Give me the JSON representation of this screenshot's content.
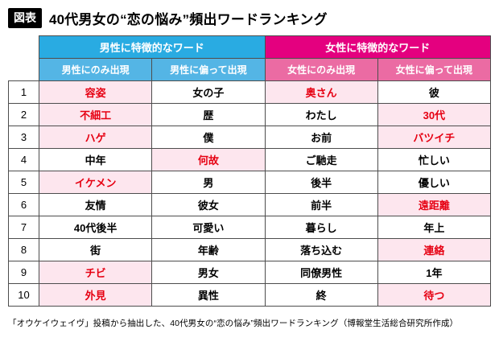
{
  "page": {
    "badge": "図表",
    "title": "40代男女の“恋の悩み”頻出ワードランキング",
    "caption": "「オウケイウェイヴ」投稿から抽出した、40代男女の“恋の悩み”頻出ワードランキング（博報堂生活総合研究所作成）"
  },
  "colors": {
    "male_header": "#29ABE2",
    "male_subheader": "#54B5E5",
    "female_header": "#E4007F",
    "female_subheader": "#EB6BA3",
    "highlight_bg": "#FDE6EE",
    "highlight_text": "#E60012",
    "badge_bg": "#000000",
    "grid_border": "#4D4D4D"
  },
  "chart_data": {
    "type": "table",
    "title": "40代男女の“恋の悩み”頻出ワードランキング",
    "legend_note": "highlighted cells = pink background with red bold text",
    "group_headers": [
      {
        "label": "男性に特徴的なワード"
      },
      {
        "label": "女性に特徴的なワード"
      }
    ],
    "column_headers": [
      {
        "label": "男性にのみ出現"
      },
      {
        "label": "男性に偏って出現"
      },
      {
        "label": "女性にのみ出現"
      },
      {
        "label": "女性に偏って出現"
      }
    ],
    "rows": [
      {
        "rank": "1",
        "cells": [
          {
            "text": "容姿",
            "highlight": true
          },
          {
            "text": "女の子",
            "highlight": false
          },
          {
            "text": "奥さん",
            "highlight": true
          },
          {
            "text": "彼",
            "highlight": false
          }
        ]
      },
      {
        "rank": "2",
        "cells": [
          {
            "text": "不細工",
            "highlight": true
          },
          {
            "text": "歴",
            "highlight": false
          },
          {
            "text": "わたし",
            "highlight": false
          },
          {
            "text": "30代",
            "highlight": true
          }
        ]
      },
      {
        "rank": "3",
        "cells": [
          {
            "text": "ハゲ",
            "highlight": true
          },
          {
            "text": "僕",
            "highlight": false
          },
          {
            "text": "お前",
            "highlight": false
          },
          {
            "text": "バツイチ",
            "highlight": true
          }
        ]
      },
      {
        "rank": "4",
        "cells": [
          {
            "text": "中年",
            "highlight": false
          },
          {
            "text": "何故",
            "highlight": true
          },
          {
            "text": "ご馳走",
            "highlight": false
          },
          {
            "text": "忙しい",
            "highlight": false
          }
        ]
      },
      {
        "rank": "5",
        "cells": [
          {
            "text": "イケメン",
            "highlight": true
          },
          {
            "text": "男",
            "highlight": false
          },
          {
            "text": "後半",
            "highlight": false
          },
          {
            "text": "優しい",
            "highlight": false
          }
        ]
      },
      {
        "rank": "6",
        "cells": [
          {
            "text": "友情",
            "highlight": false
          },
          {
            "text": "彼女",
            "highlight": false
          },
          {
            "text": "前半",
            "highlight": false
          },
          {
            "text": "遠距離",
            "highlight": true
          }
        ]
      },
      {
        "rank": "7",
        "cells": [
          {
            "text": "40代後半",
            "highlight": false
          },
          {
            "text": "可愛い",
            "highlight": false
          },
          {
            "text": "暮らし",
            "highlight": false
          },
          {
            "text": "年上",
            "highlight": false
          }
        ]
      },
      {
        "rank": "8",
        "cells": [
          {
            "text": "街",
            "highlight": false
          },
          {
            "text": "年齢",
            "highlight": false
          },
          {
            "text": "落ち込む",
            "highlight": false
          },
          {
            "text": "連絡",
            "highlight": true
          }
        ]
      },
      {
        "rank": "9",
        "cells": [
          {
            "text": "チビ",
            "highlight": true
          },
          {
            "text": "男女",
            "highlight": false
          },
          {
            "text": "同僚男性",
            "highlight": false
          },
          {
            "text": "1年",
            "highlight": false
          }
        ]
      },
      {
        "rank": "10",
        "cells": [
          {
            "text": "外見",
            "highlight": true
          },
          {
            "text": "異性",
            "highlight": false
          },
          {
            "text": "終",
            "highlight": false
          },
          {
            "text": "待つ",
            "highlight": true
          }
        ]
      }
    ]
  }
}
